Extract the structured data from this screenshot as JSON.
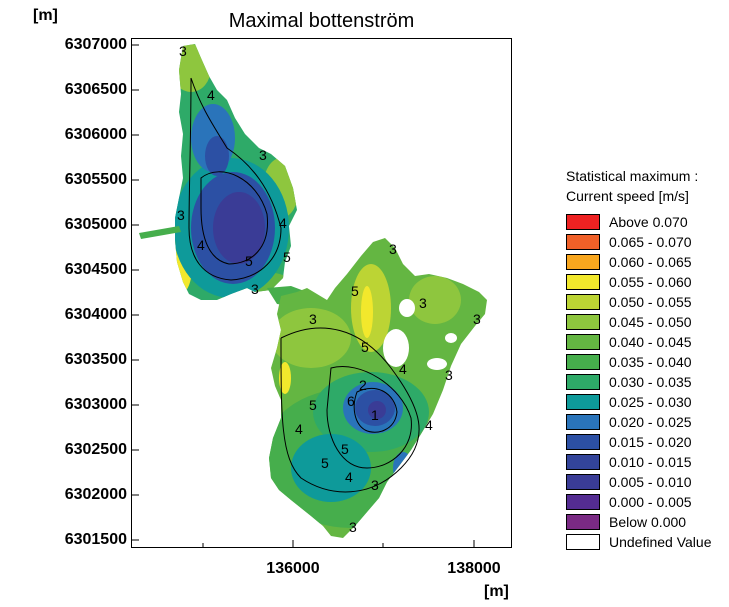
{
  "title": "Maximal bottenström",
  "axes": {
    "x_unit": "[m]",
    "y_unit": "[m]",
    "x_ticks": [
      "136000",
      "138000"
    ],
    "y_ticks": [
      "6307000",
      "6306500",
      "6306000",
      "6305500",
      "6305000",
      "6304500",
      "6304000",
      "6303500",
      "6303000",
      "6302500",
      "6302000",
      "6301500"
    ]
  },
  "contour_labels": [
    "3",
    "4",
    "5",
    "6",
    "1",
    "2"
  ],
  "legend": {
    "title_line1": "Statistical maximum :",
    "title_line2": "Current speed [m/s]",
    "items": [
      {
        "label": "Above  0.070",
        "color": "#ee2222"
      },
      {
        "label": "0.065 - 0.070",
        "color": "#f06028"
      },
      {
        "label": "0.060 - 0.065",
        "color": "#f8a61e"
      },
      {
        "label": "0.055 - 0.060",
        "color": "#f2e82c"
      },
      {
        "label": "0.050 - 0.055",
        "color": "#bcd434"
      },
      {
        "label": "0.045 - 0.050",
        "color": "#8ec63e"
      },
      {
        "label": "0.040 - 0.045",
        "color": "#64b642"
      },
      {
        "label": "0.035 - 0.040",
        "color": "#46ae4c"
      },
      {
        "label": "0.030 - 0.035",
        "color": "#2eaa68"
      },
      {
        "label": "0.025 - 0.030",
        "color": "#0e9a9a"
      },
      {
        "label": "0.020 - 0.025",
        "color": "#2a74ba"
      },
      {
        "label": "0.015 - 0.020",
        "color": "#2c50a4"
      },
      {
        "label": "0.010 - 0.015",
        "color": "#33449a"
      },
      {
        "label": "0.005 - 0.010",
        "color": "#3a3c96"
      },
      {
        "label": "0.000 - 0.005",
        "color": "#542c92"
      },
      {
        "label": "Below  0.000",
        "color": "#7a2a84"
      },
      {
        "label": "Undefined Value",
        "color": "#ffffff"
      }
    ]
  }
}
